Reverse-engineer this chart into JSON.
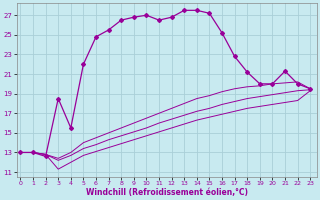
{
  "xlabel": "Windchill (Refroidissement éolien,°C)",
  "background_color": "#c8eaf0",
  "grid_color": "#b0d8e0",
  "line_color": "#990099",
  "x_ticks": [
    0,
    1,
    2,
    3,
    4,
    5,
    6,
    7,
    8,
    9,
    10,
    11,
    12,
    13,
    14,
    15,
    16,
    17,
    18,
    19,
    20,
    21,
    22,
    23
  ],
  "y_ticks": [
    11,
    13,
    15,
    17,
    19,
    21,
    23,
    25,
    27
  ],
  "ylim": [
    10.5,
    28.2
  ],
  "xlim": [
    -0.3,
    23.5
  ],
  "curve1_x": [
    0,
    1,
    2,
    3,
    4,
    5,
    6,
    7,
    8,
    9,
    10,
    11,
    12,
    13,
    14,
    15,
    16,
    17,
    18,
    19,
    20,
    21,
    22,
    23
  ],
  "curve1_y": [
    13.0,
    13.0,
    12.6,
    18.5,
    15.5,
    22.0,
    24.8,
    25.5,
    26.5,
    26.8,
    27.0,
    26.5,
    26.8,
    27.5,
    27.5,
    27.2,
    25.2,
    22.8,
    21.2,
    20.0,
    20.0,
    21.3,
    20.0,
    19.5
  ],
  "curve2_x": [
    0,
    1,
    2,
    3,
    4,
    5,
    6,
    7,
    8,
    9,
    10,
    11,
    12,
    13,
    14,
    15,
    16,
    17,
    18,
    19,
    20,
    21,
    22,
    23
  ],
  "curve2_y": [
    13.0,
    13.0,
    12.8,
    12.4,
    13.0,
    14.0,
    14.5,
    15.0,
    15.5,
    16.0,
    16.5,
    17.0,
    17.5,
    18.0,
    18.5,
    18.8,
    19.2,
    19.5,
    19.7,
    19.8,
    20.0,
    20.1,
    20.2,
    19.5
  ],
  "curve3_x": [
    0,
    1,
    2,
    3,
    4,
    5,
    6,
    7,
    8,
    9,
    10,
    11,
    12,
    13,
    14,
    15,
    16,
    17,
    18,
    19,
    20,
    21,
    22,
    23
  ],
  "curve3_y": [
    13.0,
    13.0,
    12.8,
    12.2,
    12.7,
    13.4,
    13.8,
    14.3,
    14.7,
    15.1,
    15.5,
    16.0,
    16.4,
    16.8,
    17.2,
    17.5,
    17.9,
    18.2,
    18.5,
    18.7,
    18.9,
    19.1,
    19.3,
    19.4
  ],
  "curve4_x": [
    0,
    1,
    2,
    3,
    4,
    5,
    6,
    7,
    8,
    9,
    10,
    11,
    12,
    13,
    14,
    15,
    16,
    17,
    18,
    19,
    20,
    21,
    22,
    23
  ],
  "curve4_y": [
    13.0,
    13.0,
    12.8,
    11.3,
    12.0,
    12.7,
    13.1,
    13.5,
    13.9,
    14.3,
    14.7,
    15.1,
    15.5,
    15.9,
    16.3,
    16.6,
    16.9,
    17.2,
    17.5,
    17.7,
    17.9,
    18.1,
    18.3,
    19.3
  ]
}
